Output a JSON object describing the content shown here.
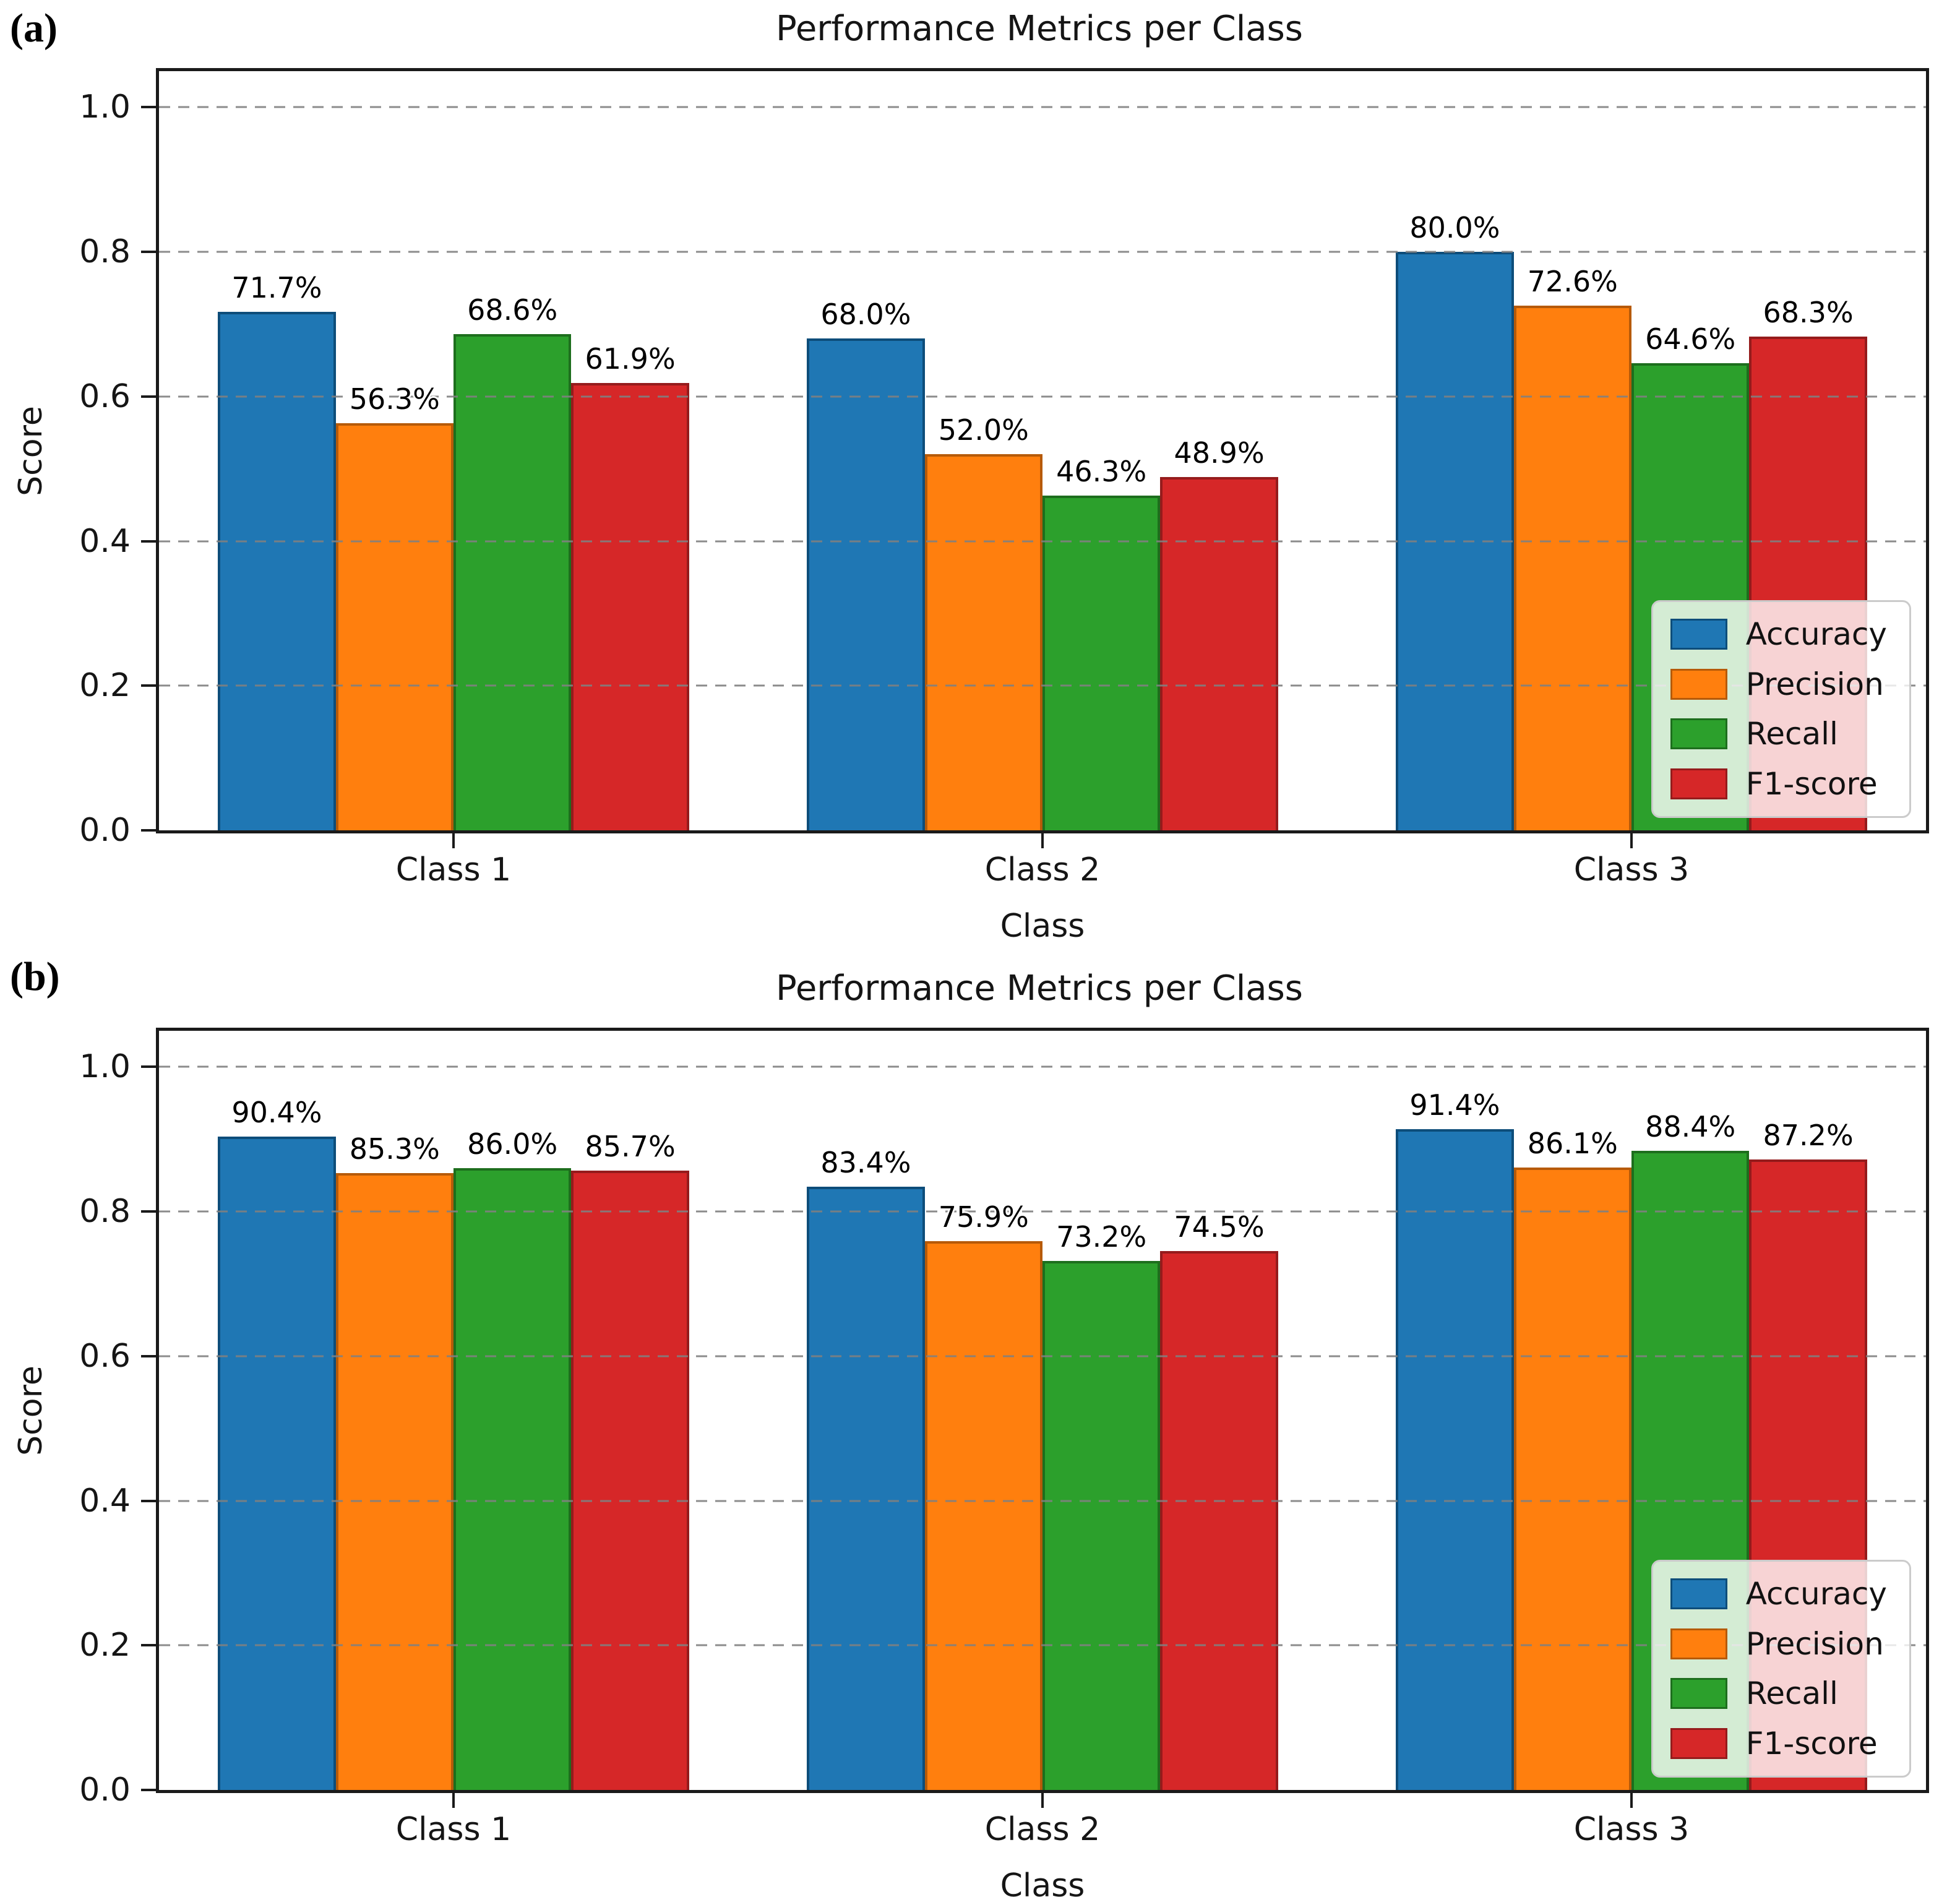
{
  "chart_data": [
    {
      "type": "bar",
      "panel_label": "(a)",
      "title": "Performance Metrics per Class",
      "xlabel": "Class",
      "ylabel": "Score",
      "categories": [
        "Class 1",
        "Class 2",
        "Class 3"
      ],
      "series": [
        {
          "name": "Accuracy",
          "color": "#1f77b4",
          "edge_color": "#0d4d7a",
          "values_pct": [
            71.7,
            68.0,
            80.0
          ],
          "labels": [
            "71.7%",
            "68.0%",
            "80.0%"
          ]
        },
        {
          "name": "Precision",
          "color": "#ff7f0e",
          "edge_color": "#b65a09",
          "values_pct": [
            56.3,
            52.0,
            72.6
          ],
          "labels": [
            "56.3%",
            "52.0%",
            "72.6%"
          ]
        },
        {
          "name": "Recall",
          "color": "#2ca02c",
          "edge_color": "#1d6e1d",
          "values_pct": [
            68.6,
            46.3,
            64.6
          ],
          "labels": [
            "68.6%",
            "46.3%",
            "64.6%"
          ]
        },
        {
          "name": "F1-score",
          "color": "#d62728",
          "edge_color": "#951b1c",
          "values_pct": [
            61.9,
            48.9,
            68.3
          ],
          "labels": [
            "61.9%",
            "48.9%",
            "68.3%"
          ]
        }
      ],
      "ylim": [
        0,
        1.05
      ],
      "yticks": [
        "0.0",
        "0.2",
        "0.4",
        "0.6",
        "0.8",
        "1.0"
      ],
      "grid": "horizontal dashed gray",
      "legend_position": "lower right"
    },
    {
      "type": "bar",
      "panel_label": "(b)",
      "title": "Performance Metrics per Class",
      "xlabel": "Class",
      "ylabel": "Score",
      "categories": [
        "Class 1",
        "Class 2",
        "Class 3"
      ],
      "series": [
        {
          "name": "Accuracy",
          "color": "#1f77b4",
          "edge_color": "#0d4d7a",
          "values_pct": [
            90.4,
            83.4,
            91.4
          ],
          "labels": [
            "90.4%",
            "83.4%",
            "91.4%"
          ]
        },
        {
          "name": "Precision",
          "color": "#ff7f0e",
          "edge_color": "#b65a09",
          "values_pct": [
            85.3,
            75.9,
            86.1
          ],
          "labels": [
            "85.3%",
            "75.9%",
            "86.1%"
          ]
        },
        {
          "name": "Recall",
          "color": "#2ca02c",
          "edge_color": "#1d6e1d",
          "values_pct": [
            86.0,
            73.2,
            88.4
          ],
          "labels": [
            "86.0%",
            "73.2%",
            "88.4%"
          ]
        },
        {
          "name": "F1-score",
          "color": "#d62728",
          "edge_color": "#951b1c",
          "values_pct": [
            85.7,
            74.5,
            87.2
          ],
          "labels": [
            "85.7%",
            "74.5%",
            "87.2%"
          ]
        }
      ],
      "ylim": [
        0,
        1.05
      ],
      "yticks": [
        "0.0",
        "0.2",
        "0.4",
        "0.6",
        "0.8",
        "1.0"
      ],
      "grid": "horizontal dashed gray",
      "legend_position": "lower right"
    }
  ]
}
